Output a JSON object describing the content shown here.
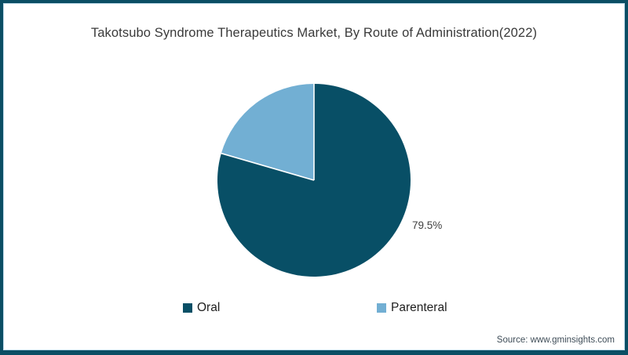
{
  "title": "Takotsubo Syndrome Therapeutics Market, By Route of Administration(2022)",
  "source": "Source: www.gminsights.com",
  "pie_label": "79.5%",
  "frame": {
    "border_color": "#0b4e64"
  },
  "legend": {
    "items": [
      {
        "label": "Oral",
        "color": "#084f66"
      },
      {
        "label": "Parenteral",
        "color": "#72afd3"
      }
    ]
  },
  "chart_data": {
    "type": "pie",
    "title": "Takotsubo Syndrome Therapeutics Market, By Route of Administration(2022)",
    "categories": [
      "Oral",
      "Parenteral"
    ],
    "values": [
      79.5,
      20.5
    ],
    "colors": [
      "#084f66",
      "#72afd3"
    ],
    "unit": "%",
    "start_angle_deg": -90,
    "direction": "clockwise",
    "visible_data_labels": [
      "79.5%"
    ],
    "legend_position": "bottom",
    "separator_color": "#ffffff"
  }
}
